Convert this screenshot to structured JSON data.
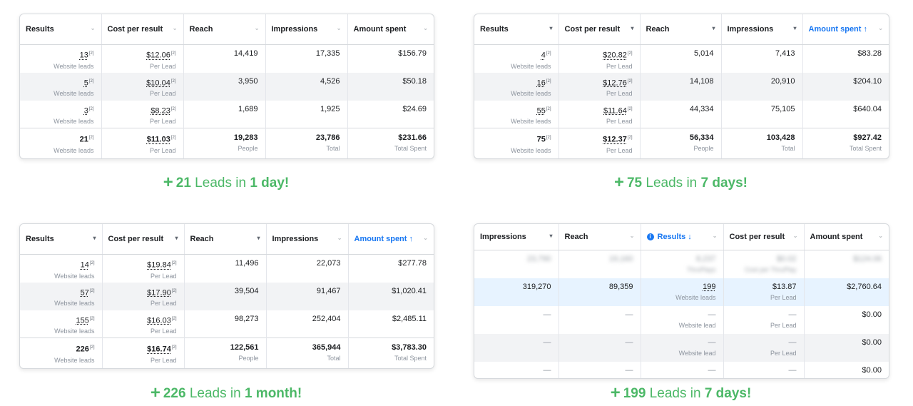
{
  "colors": {
    "accent": "#4cb867",
    "sorted_header": "#1877f2",
    "highlight_row": "#e7f3ff"
  },
  "panels": [
    {
      "columns": [
        {
          "label": "Results",
          "caret": "⌄"
        },
        {
          "label": "Cost per result",
          "caret": "⌄"
        },
        {
          "label": "Reach",
          "caret": "⌄"
        },
        {
          "label": "Impressions",
          "caret": "⌄"
        },
        {
          "label": "Amount spent",
          "caret": "⌄"
        }
      ],
      "rows": [
        {
          "results": "13",
          "results_sub": "Website leads",
          "cpr": "$12.06",
          "cpr_sub": "Per Lead",
          "reach": "14,419",
          "impressions": "17,335",
          "spent": "$156.79"
        },
        {
          "results": "5",
          "results_sub": "Website leads",
          "cpr": "$10.04",
          "cpr_sub": "Per Lead",
          "reach": "3,950",
          "impressions": "4,526",
          "spent": "$50.18"
        },
        {
          "results": "3",
          "results_sub": "Website leads",
          "cpr": "$8.23",
          "cpr_sub": "Per Lead",
          "reach": "1,689",
          "impressions": "1,925",
          "spent": "$24.69"
        }
      ],
      "total": {
        "results": "21",
        "results_sub": "Website leads",
        "cpr": "$11.03",
        "cpr_sub": "Per Lead",
        "reach": "19,283",
        "reach_sub": "People",
        "impressions": "23,786",
        "impressions_sub": "Total",
        "spent": "$231.66",
        "spent_sub": "Total Spent"
      },
      "caption": {
        "plus": "+",
        "count": "21",
        "mid": " Leads in ",
        "period": "1 day!"
      }
    },
    {
      "columns": [
        {
          "label": "Results",
          "caret": "▾"
        },
        {
          "label": "Cost per result",
          "caret": "▾"
        },
        {
          "label": "Reach",
          "caret": "▾"
        },
        {
          "label": "Impressions",
          "caret": "▾"
        },
        {
          "label": "Amount spent ↑",
          "caret": "⌄"
        }
      ],
      "rows": [
        {
          "results": "4",
          "results_sub": "Website leads",
          "cpr": "$20.82",
          "cpr_sub": "Per Lead",
          "reach": "5,014",
          "impressions": "7,413",
          "spent": "$83.28"
        },
        {
          "results": "16",
          "results_sub": "Website leads",
          "cpr": "$12.76",
          "cpr_sub": "Per Lead",
          "reach": "14,108",
          "impressions": "20,910",
          "spent": "$204.10"
        },
        {
          "results": "55",
          "results_sub": "Website leads",
          "cpr": "$11.64",
          "cpr_sub": "Per Lead",
          "reach": "44,334",
          "impressions": "75,105",
          "spent": "$640.04"
        }
      ],
      "total": {
        "results": "75",
        "results_sub": "Website leads",
        "cpr": "$12.37",
        "cpr_sub": "Per Lead",
        "reach": "56,334",
        "reach_sub": "People",
        "impressions": "103,428",
        "impressions_sub": "Total",
        "spent": "$927.42",
        "spent_sub": "Total Spent"
      },
      "caption": {
        "plus": "+",
        "count": "75",
        "mid": " Leads in ",
        "period": "7 days!"
      }
    },
    {
      "columns": [
        {
          "label": "Results",
          "caret": "▾"
        },
        {
          "label": "Cost per result",
          "caret": "▾"
        },
        {
          "label": "Reach",
          "caret": "▾"
        },
        {
          "label": "Impressions",
          "caret": "⌄"
        },
        {
          "label": "Amount spent ↑",
          "caret": "⌄"
        }
      ],
      "rows": [
        {
          "results": "14",
          "results_sub": "Website leads",
          "cpr": "$19.84",
          "cpr_sub": "Per Lead",
          "reach": "11,496",
          "impressions": "22,073",
          "spent": "$277.78"
        },
        {
          "results": "57",
          "results_sub": "Website leads",
          "cpr": "$17.90",
          "cpr_sub": "Per Lead",
          "reach": "39,504",
          "impressions": "91,467",
          "spent": "$1,020.41"
        },
        {
          "results": "155",
          "results_sub": "Website leads",
          "cpr": "$16.03",
          "cpr_sub": "Per Lead",
          "reach": "98,273",
          "impressions": "252,404",
          "spent": "$2,485.11"
        }
      ],
      "total": {
        "results": "226",
        "results_sub": "Website leads",
        "cpr": "$16.74",
        "cpr_sub": "Per Lead",
        "reach": "122,561",
        "reach_sub": "People",
        "impressions": "365,944",
        "impressions_sub": "Total",
        "spent": "$3,783.30",
        "spent_sub": "Total Spent"
      },
      "caption": {
        "plus": "+",
        "count": "226",
        "mid": " Leads in ",
        "period": "1 month!"
      }
    },
    {
      "columns": [
        {
          "label": "Impressions",
          "caret": "▾"
        },
        {
          "label": "Reach",
          "caret": "⌄"
        },
        {
          "label": "Results ↓",
          "caret": "⌄"
        },
        {
          "label": "Cost per result",
          "caret": "⌄"
        },
        {
          "label": "Amount spent",
          "caret": "⌄"
        }
      ],
      "rows": [
        {
          "impressions": "23,790",
          "reach": "19,160",
          "results": "8,237",
          "results_sub": "ThruPlays",
          "cpr": "$0.02",
          "cpr_sub": "Cost per ThruPlay",
          "spent": "$124.06"
        },
        {
          "impressions": "319,270",
          "reach": "89,359",
          "results": "199",
          "results_sub": "Website leads",
          "cpr": "$13.87",
          "cpr_sub": "Per Lead",
          "spent": "$2,760.64"
        },
        {
          "impressions": "—",
          "reach": "—",
          "results": "—",
          "results_sub": "Website lead",
          "cpr": "—",
          "cpr_sub": "Per Lead",
          "spent": "$0.00"
        },
        {
          "impressions": "—",
          "reach": "—",
          "results": "—",
          "results_sub": "Website lead",
          "cpr": "—",
          "cpr_sub": "Per Lead",
          "spent": "$0.00"
        },
        {
          "impressions": "—",
          "reach": "—",
          "results": "—",
          "cpr": "—",
          "spent": "$0.00"
        }
      ],
      "caption": {
        "plus": "+",
        "count": "199",
        "mid": " Leads in ",
        "period": "7 days!"
      }
    }
  ]
}
